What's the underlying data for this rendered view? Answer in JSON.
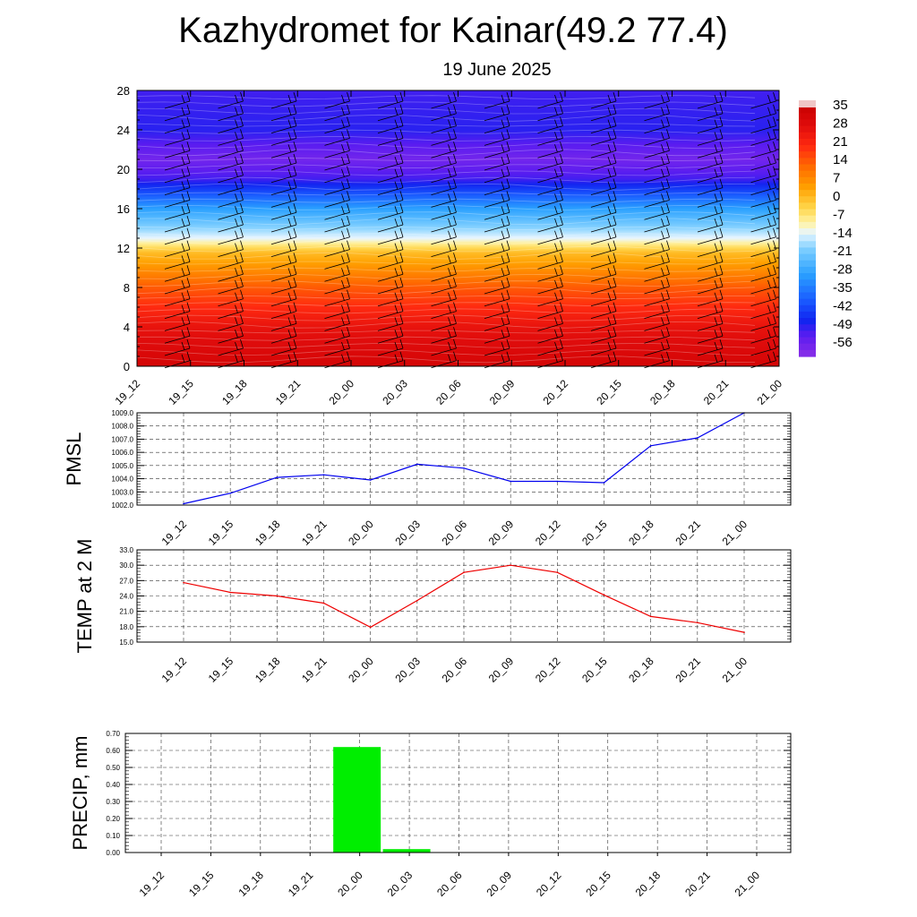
{
  "title": "Kazhydromet for Kainar(49.2 77.4)",
  "subtitle": "19 June 2025",
  "chart_data": [
    {
      "type": "heatmap",
      "x_labels": [
        "19_12",
        "19_15",
        "19_18",
        "19_21",
        "20_00",
        "20_03",
        "20_06",
        "20_09",
        "20_12",
        "20_15",
        "20_18",
        "20_21",
        "21_00"
      ],
      "y_ticks": [
        "0",
        "4",
        "8",
        "12",
        "16",
        "20",
        "24",
        "28"
      ],
      "ylim": [
        0,
        28
      ],
      "colorbar_labels": [
        "35",
        "28",
        "21",
        "14",
        "7",
        "0",
        "-7",
        "-14",
        "-21",
        "-28",
        "-35",
        "-42",
        "-49",
        "-56"
      ],
      "temperature_profile_celsius": [
        {
          "height": 0,
          "value": 32
        },
        {
          "height": 4,
          "value": 26
        },
        {
          "height": 8,
          "value": 14
        },
        {
          "height": 11.5,
          "value": 0
        },
        {
          "height": 13,
          "value": -14
        },
        {
          "height": 16,
          "value": -30
        },
        {
          "height": 19,
          "value": -52
        },
        {
          "height": 21,
          "value": -58
        },
        {
          "height": 24,
          "value": -50
        },
        {
          "height": 28,
          "value": -52
        }
      ],
      "wind_barbs": true,
      "colors": {
        "violet": "#8a2be2",
        "blue": "#1020e8",
        "cyan": "#33b3ff",
        "yellow": "#ffe97a",
        "orange": "#ff8800",
        "red": "#e81010",
        "darkred": "#c40000"
      }
    },
    {
      "type": "line",
      "ylabel": "PMSL",
      "x": [
        "19_12",
        "19_15",
        "19_18",
        "19_21",
        "20_00",
        "20_03",
        "20_06",
        "20_09",
        "20_12",
        "20_15",
        "20_18",
        "20_21",
        "21_00"
      ],
      "values": [
        1002.1,
        1002.9,
        1004.1,
        1004.3,
        1003.9,
        1005.1,
        1004.8,
        1003.8,
        1003.8,
        1003.7,
        1006.5,
        1007.1,
        1009.0
      ],
      "y_ticks": [
        "1002.0",
        "1003.0",
        "1004.0",
        "1005.0",
        "1006.0",
        "1007.0",
        "1008.0",
        "1009.0"
      ],
      "ylim": [
        1002.0,
        1009.0
      ],
      "color": "#0000ee"
    },
    {
      "type": "line",
      "ylabel": "TEMP at 2 M",
      "x": [
        "19_12",
        "19_15",
        "19_18",
        "19_21",
        "20_00",
        "20_03",
        "20_06",
        "20_09",
        "20_12",
        "20_15",
        "20_18",
        "20_21",
        "21_00"
      ],
      "values": [
        26.6,
        24.7,
        24.0,
        22.6,
        17.9,
        23.1,
        28.6,
        30.0,
        28.6,
        24.2,
        20.0,
        18.8,
        16.9
      ],
      "y_ticks": [
        "15.0",
        "18.0",
        "21.0",
        "24.0",
        "27.0",
        "30.0",
        "33.0"
      ],
      "ylim": [
        15.0,
        33.0
      ],
      "color": "#ee0000"
    },
    {
      "type": "bar",
      "ylabel": "PRECIP, mm",
      "categories": [
        "19_12",
        "19_15",
        "19_18",
        "19_21",
        "20_00",
        "20_03",
        "20_06",
        "20_09",
        "20_12",
        "20_15",
        "20_18",
        "20_21",
        "21_00"
      ],
      "values": [
        0,
        0,
        0,
        0,
        0.62,
        0.02,
        0,
        0,
        0,
        0,
        0,
        0,
        0
      ],
      "y_ticks": [
        "0.00",
        "0.10",
        "0.20",
        "0.30",
        "0.40",
        "0.50",
        "0.60",
        "0.70"
      ],
      "ylim": [
        0,
        0.7
      ],
      "color": "#00ee00"
    }
  ]
}
